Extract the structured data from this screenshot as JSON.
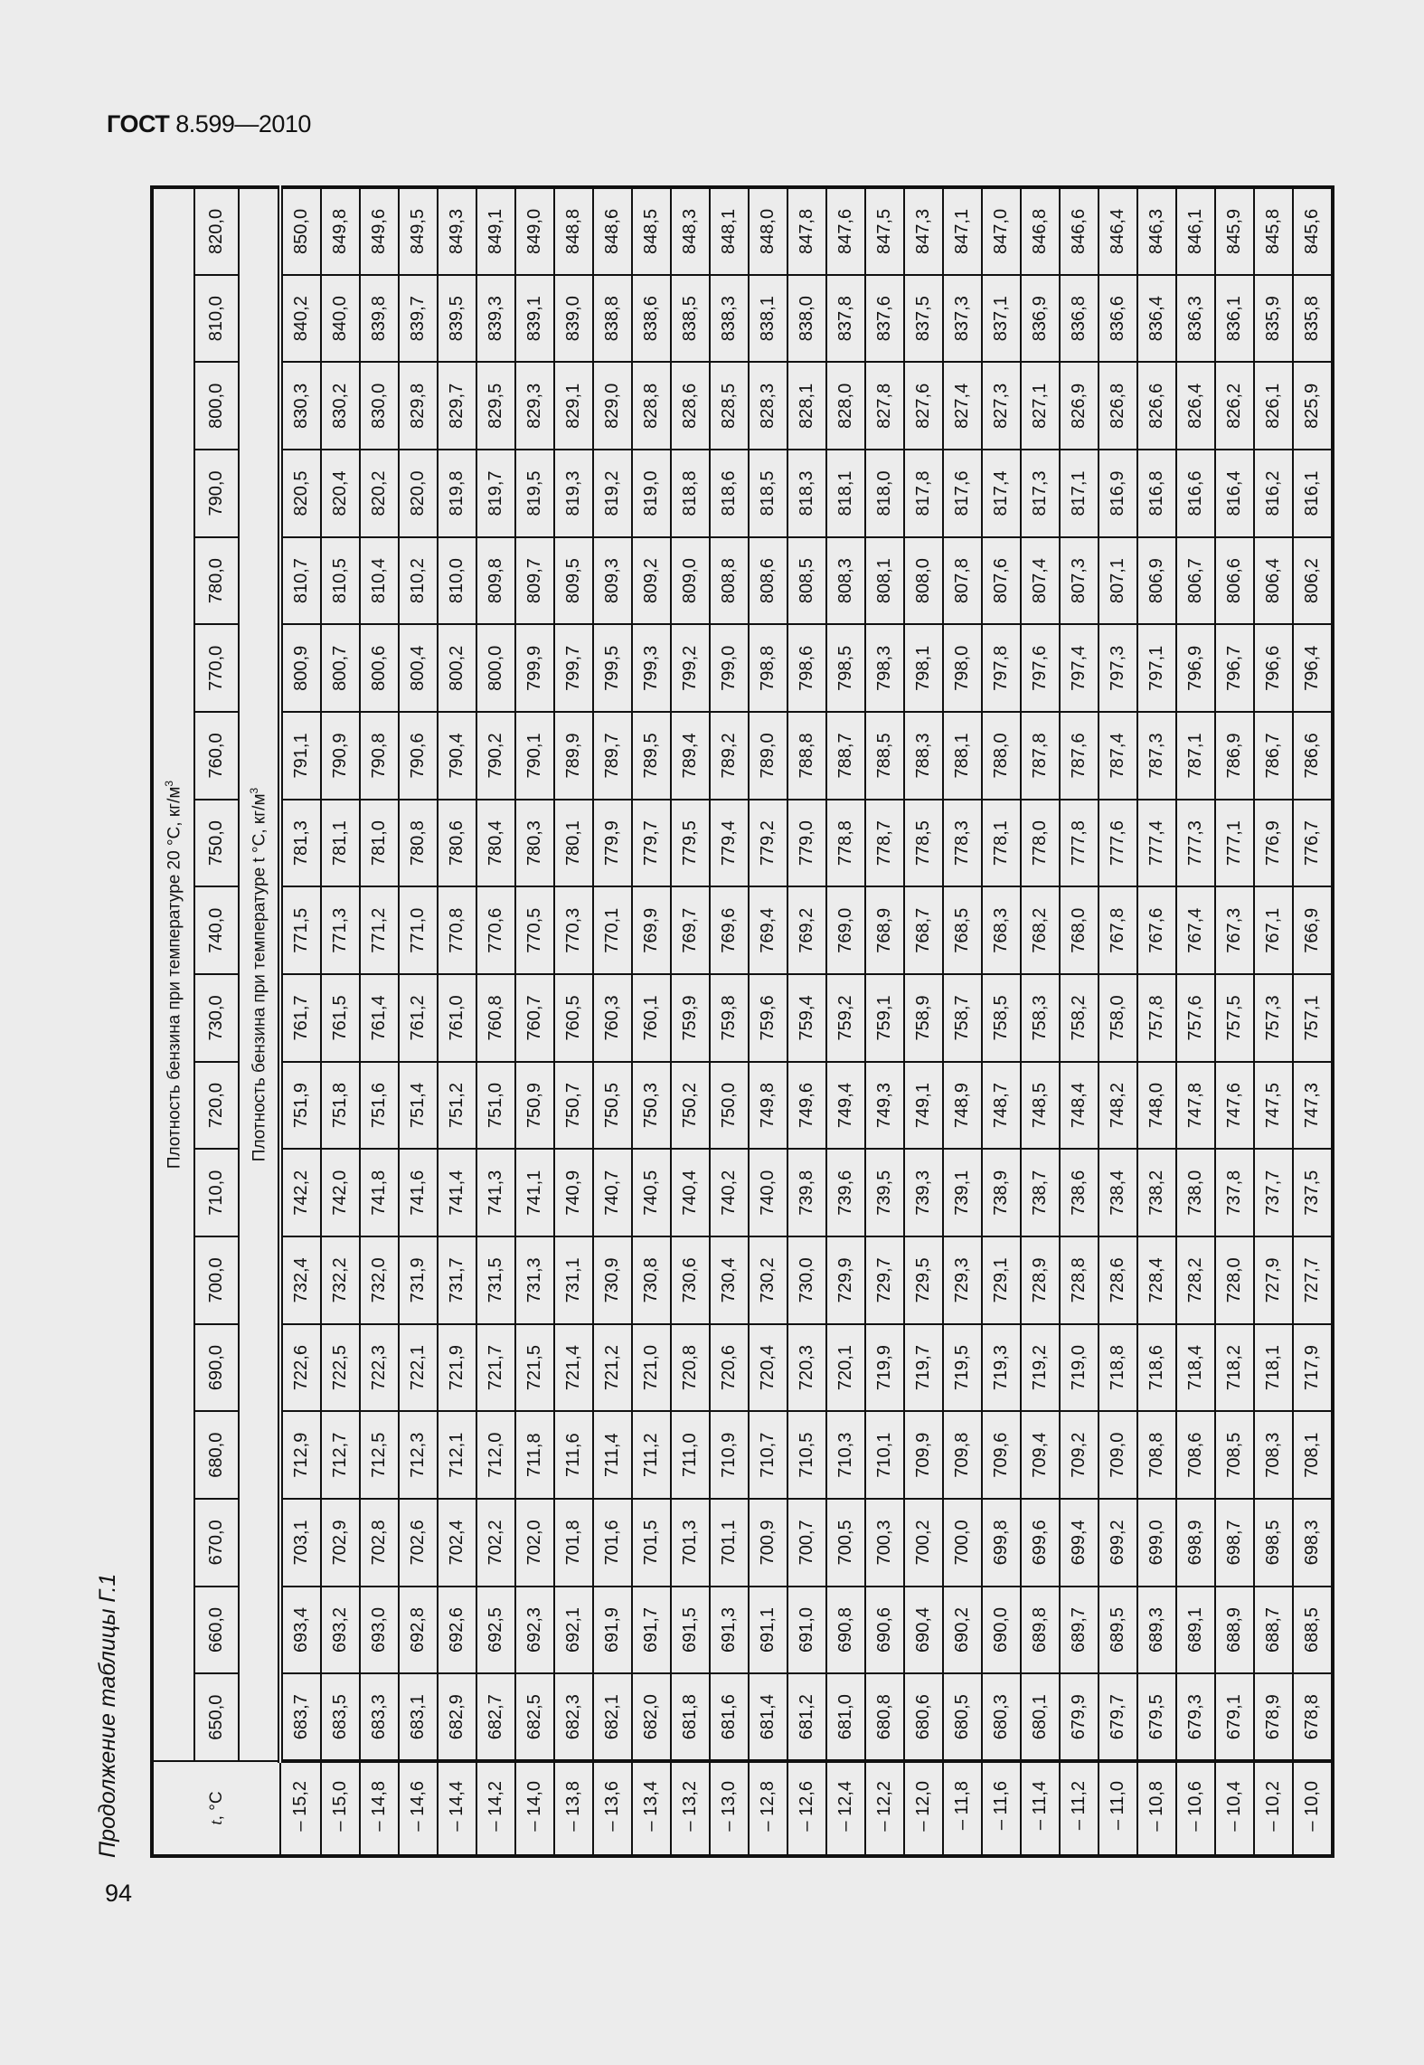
{
  "header": {
    "standard_bold": "ГОСТ",
    "standard_rest": " 8.599—2010"
  },
  "page_number": "94",
  "caption": "Продолжение таблицы Г.1",
  "table": {
    "t_header": "t",
    "t_unit": ", °C",
    "group_header": "Плотность бензина при температуре 20 °С, кг/м",
    "sub_header": "Плотность бензина при температуре t °С, кг/м",
    "superscript": "3",
    "density_columns": [
      "650,0",
      "660,0",
      "670,0",
      "680,0",
      "690,0",
      "700,0",
      "710,0",
      "720,0",
      "730,0",
      "740,0",
      "750,0",
      "760,0",
      "770,0",
      "780,0",
      "790,0",
      "800,0",
      "810,0",
      "820,0"
    ],
    "rows": [
      {
        "t": "– 15,2",
        "v": [
          "683,7",
          "693,4",
          "703,1",
          "712,9",
          "722,6",
          "732,4",
          "742,2",
          "751,9",
          "761,7",
          "771,5",
          "781,3",
          "791,1",
          "800,9",
          "810,7",
          "820,5",
          "830,3",
          "840,2",
          "850,0"
        ]
      },
      {
        "t": "– 15,0",
        "v": [
          "683,5",
          "693,2",
          "702,9",
          "712,7",
          "722,5",
          "732,2",
          "742,0",
          "751,8",
          "761,5",
          "771,3",
          "781,1",
          "790,9",
          "800,7",
          "810,5",
          "820,4",
          "830,2",
          "840,0",
          "849,8"
        ]
      },
      {
        "t": "– 14,8",
        "v": [
          "683,3",
          "693,0",
          "702,8",
          "712,5",
          "722,3",
          "732,0",
          "741,8",
          "751,6",
          "761,4",
          "771,2",
          "781,0",
          "790,8",
          "800,6",
          "810,4",
          "820,2",
          "830,0",
          "839,8",
          "849,6"
        ]
      },
      {
        "t": "– 14,6",
        "v": [
          "683,1",
          "692,8",
          "702,6",
          "712,3",
          "722,1",
          "731,9",
          "741,6",
          "751,4",
          "761,2",
          "771,0",
          "780,8",
          "790,6",
          "800,4",
          "810,2",
          "820,0",
          "829,8",
          "839,7",
          "849,5"
        ]
      },
      {
        "t": "– 14,4",
        "v": [
          "682,9",
          "692,6",
          "702,4",
          "712,1",
          "721,9",
          "731,7",
          "741,4",
          "751,2",
          "761,0",
          "770,8",
          "780,6",
          "790,4",
          "800,2",
          "810,0",
          "819,8",
          "829,7",
          "839,5",
          "849,3"
        ]
      },
      {
        "t": "– 14,2",
        "v": [
          "682,7",
          "692,5",
          "702,2",
          "712,0",
          "721,7",
          "731,5",
          "741,3",
          "751,0",
          "760,8",
          "770,6",
          "780,4",
          "790,2",
          "800,0",
          "809,8",
          "819,7",
          "829,5",
          "839,3",
          "849,1"
        ]
      },
      {
        "t": "– 14,0",
        "v": [
          "682,5",
          "692,3",
          "702,0",
          "711,8",
          "721,5",
          "731,3",
          "741,1",
          "750,9",
          "760,7",
          "770,5",
          "780,3",
          "790,1",
          "799,9",
          "809,7",
          "819,5",
          "829,3",
          "839,1",
          "849,0"
        ]
      },
      {
        "t": "– 13,8",
        "v": [
          "682,3",
          "692,1",
          "701,8",
          "711,6",
          "721,4",
          "731,1",
          "740,9",
          "750,7",
          "760,5",
          "770,3",
          "780,1",
          "789,9",
          "799,7",
          "809,5",
          "819,3",
          "829,1",
          "839,0",
          "848,8"
        ]
      },
      {
        "t": "– 13,6",
        "v": [
          "682,1",
          "691,9",
          "701,6",
          "711,4",
          "721,2",
          "730,9",
          "740,7",
          "750,5",
          "760,3",
          "770,1",
          "779,9",
          "789,7",
          "799,5",
          "809,3",
          "819,2",
          "829,0",
          "838,8",
          "848,6"
        ]
      },
      {
        "t": "– 13,4",
        "v": [
          "682,0",
          "691,7",
          "701,5",
          "711,2",
          "721,0",
          "730,8",
          "740,5",
          "750,3",
          "760,1",
          "769,9",
          "779,7",
          "789,5",
          "799,3",
          "809,2",
          "819,0",
          "828,8",
          "838,6",
          "848,5"
        ]
      },
      {
        "t": "– 13,2",
        "v": [
          "681,8",
          "691,5",
          "701,3",
          "711,0",
          "720,8",
          "730,6",
          "740,4",
          "750,2",
          "759,9",
          "769,7",
          "779,5",
          "789,4",
          "799,2",
          "809,0",
          "818,8",
          "828,6",
          "838,5",
          "848,3"
        ]
      },
      {
        "t": "– 13,0",
        "v": [
          "681,6",
          "691,3",
          "701,1",
          "710,9",
          "720,6",
          "730,4",
          "740,2",
          "750,0",
          "759,8",
          "769,6",
          "779,4",
          "789,2",
          "799,0",
          "808,8",
          "818,6",
          "828,5",
          "838,3",
          "848,1"
        ]
      },
      {
        "t": "– 12,8",
        "v": [
          "681,4",
          "691,1",
          "700,9",
          "710,7",
          "720,4",
          "730,2",
          "740,0",
          "749,8",
          "759,6",
          "769,4",
          "779,2",
          "789,0",
          "798,8",
          "808,6",
          "818,5",
          "828,3",
          "838,1",
          "848,0"
        ]
      },
      {
        "t": "– 12,6",
        "v": [
          "681,2",
          "691,0",
          "700,7",
          "710,5",
          "720,3",
          "730,0",
          "739,8",
          "749,6",
          "759,4",
          "769,2",
          "779,0",
          "788,8",
          "798,6",
          "808,5",
          "818,3",
          "828,1",
          "838,0",
          "847,8"
        ]
      },
      {
        "t": "– 12,4",
        "v": [
          "681,0",
          "690,8",
          "700,5",
          "710,3",
          "720,1",
          "729,9",
          "739,6",
          "749,4",
          "759,2",
          "769,0",
          "778,8",
          "788,7",
          "798,5",
          "808,3",
          "818,1",
          "828,0",
          "837,8",
          "847,6"
        ]
      },
      {
        "t": "– 12,2",
        "v": [
          "680,8",
          "690,6",
          "700,3",
          "710,1",
          "719,9",
          "729,7",
          "739,5",
          "749,3",
          "759,1",
          "768,9",
          "778,7",
          "788,5",
          "798,3",
          "808,1",
          "818,0",
          "827,8",
          "837,6",
          "847,5"
        ]
      },
      {
        "t": "– 12,0",
        "v": [
          "680,6",
          "690,4",
          "700,2",
          "709,9",
          "719,7",
          "729,5",
          "739,3",
          "749,1",
          "758,9",
          "768,7",
          "778,5",
          "788,3",
          "798,1",
          "808,0",
          "817,8",
          "827,6",
          "837,5",
          "847,3"
        ]
      },
      {
        "t": "– 11,8",
        "v": [
          "680,5",
          "690,2",
          "700,0",
          "709,8",
          "719,5",
          "729,3",
          "739,1",
          "748,9",
          "758,7",
          "768,5",
          "778,3",
          "788,1",
          "798,0",
          "807,8",
          "817,6",
          "827,4",
          "837,3",
          "847,1"
        ]
      },
      {
        "t": "– 11,6",
        "v": [
          "680,3",
          "690,0",
          "699,8",
          "709,6",
          "719,3",
          "729,1",
          "738,9",
          "748,7",
          "758,5",
          "768,3",
          "778,1",
          "788,0",
          "797,8",
          "807,6",
          "817,4",
          "827,3",
          "837,1",
          "847,0"
        ]
      },
      {
        "t": "– 11,4",
        "v": [
          "680,1",
          "689,8",
          "699,6",
          "709,4",
          "719,2",
          "728,9",
          "738,7",
          "748,5",
          "758,3",
          "768,2",
          "778,0",
          "787,8",
          "797,6",
          "807,4",
          "817,3",
          "827,1",
          "836,9",
          "846,8"
        ]
      },
      {
        "t": "– 11,2",
        "v": [
          "679,9",
          "689,7",
          "699,4",
          "709,2",
          "719,0",
          "728,8",
          "738,6",
          "748,4",
          "758,2",
          "768,0",
          "777,8",
          "787,6",
          "797,4",
          "807,3",
          "817,1",
          "826,9",
          "836,8",
          "846,6"
        ]
      },
      {
        "t": "– 11,0",
        "v": [
          "679,7",
          "689,5",
          "699,2",
          "709,0",
          "718,8",
          "728,6",
          "738,4",
          "748,2",
          "758,0",
          "767,8",
          "777,6",
          "787,4",
          "797,3",
          "807,1",
          "816,9",
          "826,8",
          "836,6",
          "846,4"
        ]
      },
      {
        "t": "– 10,8",
        "v": [
          "679,5",
          "689,3",
          "699,0",
          "708,8",
          "718,6",
          "728,4",
          "738,2",
          "748,0",
          "757,8",
          "767,6",
          "777,4",
          "787,3",
          "797,1",
          "806,9",
          "816,8",
          "826,6",
          "836,4",
          "846,3"
        ]
      },
      {
        "t": "– 10,6",
        "v": [
          "679,3",
          "689,1",
          "698,9",
          "708,6",
          "718,4",
          "728,2",
          "738,0",
          "747,8",
          "757,6",
          "767,4",
          "777,3",
          "787,1",
          "796,9",
          "806,7",
          "816,6",
          "826,4",
          "836,3",
          "846,1"
        ]
      },
      {
        "t": "– 10,4",
        "v": [
          "679,1",
          "688,9",
          "698,7",
          "708,5",
          "718,2",
          "728,0",
          "737,8",
          "747,6",
          "757,5",
          "767,3",
          "777,1",
          "786,9",
          "796,7",
          "806,6",
          "816,4",
          "826,2",
          "836,1",
          "845,9"
        ]
      },
      {
        "t": "– 10,2",
        "v": [
          "678,9",
          "688,7",
          "698,5",
          "708,3",
          "718,1",
          "727,9",
          "737,7",
          "747,5",
          "757,3",
          "767,1",
          "776,9",
          "786,7",
          "796,6",
          "806,4",
          "816,2",
          "826,1",
          "835,9",
          "845,8"
        ]
      },
      {
        "t": "– 10,0",
        "v": [
          "678,8",
          "688,5",
          "698,3",
          "708,1",
          "717,9",
          "727,7",
          "737,5",
          "747,3",
          "757,1",
          "766,9",
          "776,7",
          "786,6",
          "796,4",
          "806,2",
          "816,1",
          "825,9",
          "835,8",
          "845,6"
        ]
      }
    ]
  }
}
